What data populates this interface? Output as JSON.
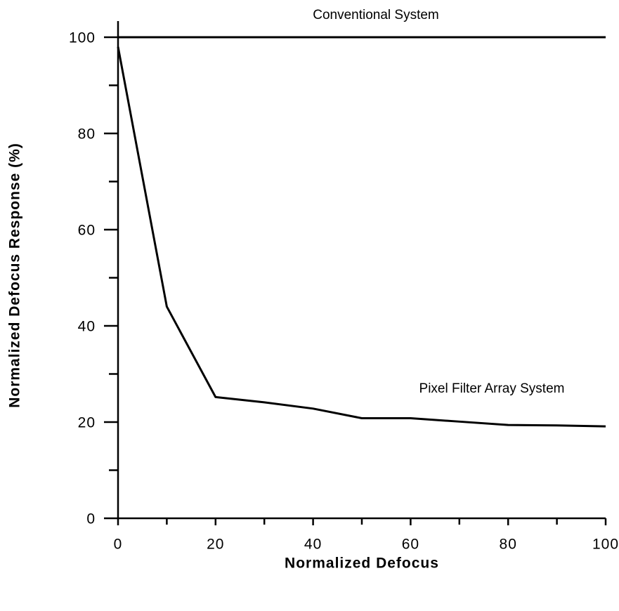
{
  "chart_data": {
    "type": "line",
    "xlabel": "Normalized  Defocus",
    "ylabel": "Normalized  Defocus  Response  (%)",
    "x": [
      0,
      10,
      20,
      30,
      40,
      50,
      60,
      70,
      80,
      90,
      100
    ],
    "series": [
      {
        "name": "Conventional System",
        "color": "#000000",
        "values": [
          100,
          100,
          100,
          100,
          100,
          100,
          100,
          100,
          100,
          100,
          100
        ]
      },
      {
        "name": "Pixel Filter Array System",
        "color": "#000000",
        "values": [
          98,
          44,
          25.2,
          24.1,
          22.8,
          20.8,
          20.8,
          20.1,
          19.4,
          19.3,
          19.1
        ]
      }
    ],
    "xlim": [
      0,
      100
    ],
    "xticks": [
      0,
      20,
      40,
      60,
      80,
      100
    ],
    "xminorticks": [
      10,
      30,
      50,
      70,
      90
    ],
    "ylim": [
      0,
      100
    ],
    "yticks": [
      0,
      20,
      40,
      60,
      80,
      100
    ],
    "yminorticks": [
      10,
      30,
      50,
      70,
      90
    ],
    "grid": false
  }
}
